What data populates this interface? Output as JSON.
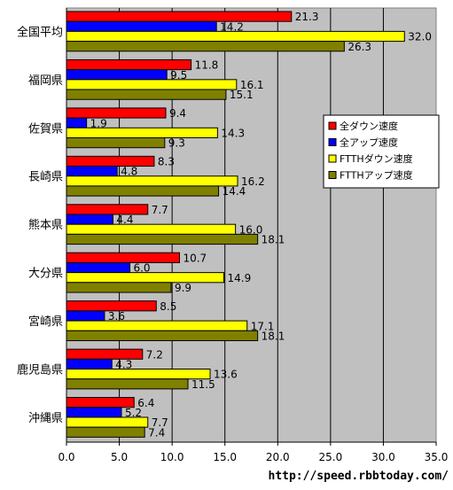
{
  "chart_data": {
    "type": "bar",
    "orientation": "horizontal",
    "categories": [
      "全国平均",
      "福岡県",
      "佐賀県",
      "長崎県",
      "熊本県",
      "大分県",
      "宮崎県",
      "鹿児島県",
      "沖縄県"
    ],
    "series": [
      {
        "name": "全ダウン速度",
        "color": "#ff0000",
        "values": [
          21.3,
          11.8,
          9.4,
          8.3,
          7.7,
          10.7,
          8.5,
          7.2,
          6.4
        ]
      },
      {
        "name": "全アップ速度",
        "color": "#0000ff",
        "values": [
          14.2,
          9.5,
          1.9,
          4.8,
          4.4,
          6.0,
          3.6,
          4.3,
          5.2
        ]
      },
      {
        "name": "FTTHダウン速度",
        "color": "#ffff00",
        "values": [
          32.0,
          16.1,
          14.3,
          16.2,
          16.0,
          14.9,
          17.1,
          13.6,
          7.7
        ]
      },
      {
        "name": "FTTHアップ速度",
        "color": "#808000",
        "values": [
          26.3,
          15.1,
          9.3,
          14.4,
          18.1,
          9.9,
          18.1,
          11.5,
          7.4
        ]
      }
    ],
    "xlim": [
      0,
      35
    ],
    "xticks": [
      "0.0",
      "5.0",
      "10.0",
      "15.0",
      "20.0",
      "25.0",
      "30.0",
      "35.0"
    ],
    "grid": true,
    "legend": "right",
    "plot_background": "#c0c0c0",
    "xlabel": "",
    "ylabel": "",
    "title": ""
  },
  "source_url": "http://speed.rbbtoday.com/"
}
